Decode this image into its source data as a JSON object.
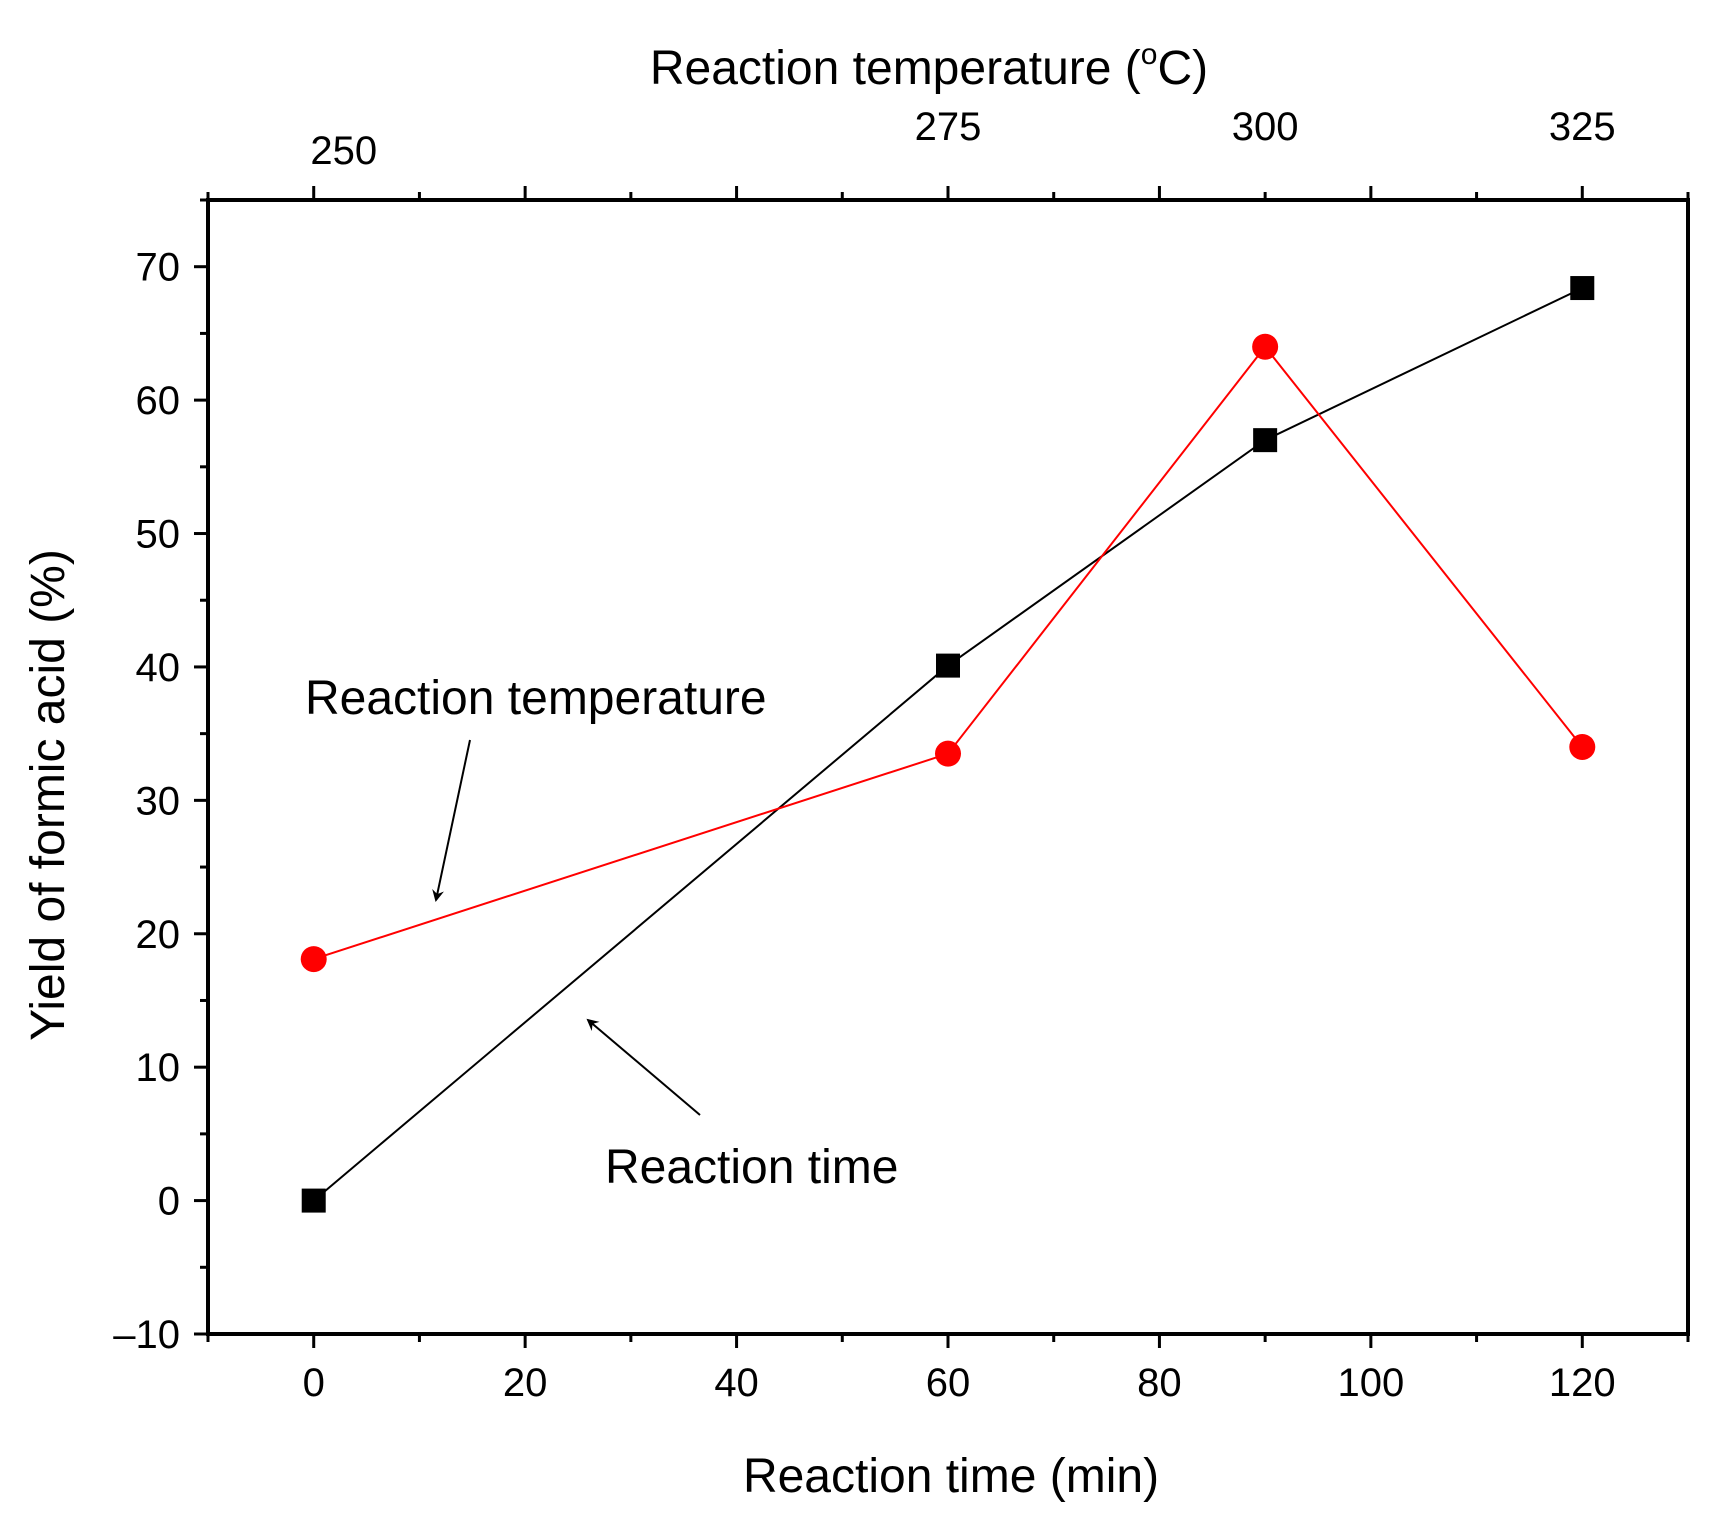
{
  "chart_data": {
    "type": "line",
    "xlabel": "Reaction time (min)",
    "x2label": "Reaction temperature (",
    "x2label_sup": "o",
    "x2label_unit": "C)",
    "ylabel": "Yield of formic acid (%)",
    "xlim": [
      -10,
      130
    ],
    "ylim": [
      -10,
      75
    ],
    "x_ticks": [
      {
        "value": 0,
        "label": "0"
      },
      {
        "value": 20,
        "label": "20"
      },
      {
        "value": 40,
        "label": "40"
      },
      {
        "value": 60,
        "label": "60"
      },
      {
        "value": 80,
        "label": "80"
      },
      {
        "value": 100,
        "label": "100"
      },
      {
        "value": 120,
        "label": "120"
      }
    ],
    "y_ticks": [
      {
        "value": -10,
        "label": "–10"
      },
      {
        "value": 0,
        "label": "0"
      },
      {
        "value": 10,
        "label": "10"
      },
      {
        "value": 20,
        "label": "20"
      },
      {
        "value": 30,
        "label": "30"
      },
      {
        "value": 40,
        "label": "40"
      },
      {
        "value": 50,
        "label": "50"
      },
      {
        "value": 60,
        "label": "60"
      },
      {
        "value": 70,
        "label": "70"
      }
    ],
    "x2_ticks": [
      {
        "value": 0,
        "label": "250"
      },
      {
        "value": 60,
        "label": "275"
      },
      {
        "value": 90,
        "label": "300"
      },
      {
        "value": 120,
        "label": "325"
      }
    ],
    "grid": false,
    "series": [
      {
        "name": "Reaction time",
        "axis": "bottom",
        "marker": "square",
        "color": "#000000",
        "points": [
          {
            "x": 0,
            "y": 0
          },
          {
            "x": 60,
            "y": 40.1
          },
          {
            "x": 90,
            "y": 57.0
          },
          {
            "x": 120,
            "y": 68.4
          }
        ]
      },
      {
        "name": "Reaction temperature",
        "axis": "top",
        "marker": "circle",
        "color": "#ff0000",
        "points": [
          {
            "x": 250,
            "y": 18.1
          },
          {
            "x": 275,
            "y": 33.5
          },
          {
            "x": 300,
            "y": 64.0
          },
          {
            "x": 325,
            "y": 34.0
          }
        ]
      }
    ],
    "annotations": [
      {
        "text": "Reaction temperature",
        "series": "Reaction temperature",
        "arrow_to": {
          "x": 11,
          "y": 22
        }
      },
      {
        "text": "Reaction time",
        "series": "Reaction time",
        "arrow_to": {
          "x": 25,
          "y": 14
        }
      }
    ]
  }
}
